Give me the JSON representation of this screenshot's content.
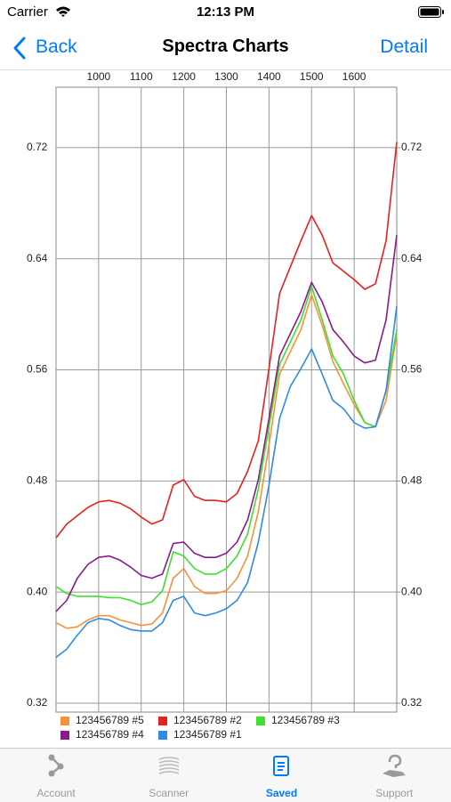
{
  "status_bar": {
    "carrier": "Carrier",
    "time": "12:13 PM"
  },
  "nav_bar": {
    "back": "Back",
    "title": "Spectra Charts",
    "action": "Detail"
  },
  "chart_data": {
    "type": "line",
    "x": [
      900,
      925,
      950,
      975,
      1000,
      1025,
      1050,
      1075,
      1100,
      1125,
      1150,
      1175,
      1200,
      1225,
      1250,
      1275,
      1300,
      1325,
      1350,
      1375,
      1400,
      1425,
      1450,
      1475,
      1500,
      1525,
      1550,
      1575,
      1600,
      1625,
      1650,
      1675,
      1700
    ],
    "series": [
      {
        "name": "123456789 #5",
        "color": "#f7923a",
        "values": [
          0.378,
          0.374,
          0.375,
          0.38,
          0.383,
          0.383,
          0.38,
          0.378,
          0.376,
          0.377,
          0.385,
          0.41,
          0.417,
          0.404,
          0.399,
          0.399,
          0.401,
          0.41,
          0.426,
          0.458,
          0.506,
          0.557,
          0.573,
          0.589,
          0.614,
          0.592,
          0.566,
          0.55,
          0.535,
          0.522,
          0.519,
          0.538,
          0.586
        ]
      },
      {
        "name": "123456789 #2",
        "color": "#e8201e",
        "values": [
          0.439,
          0.449,
          0.455,
          0.461,
          0.465,
          0.466,
          0.464,
          0.46,
          0.454,
          0.449,
          0.452,
          0.477,
          0.481,
          0.469,
          0.466,
          0.466,
          0.465,
          0.471,
          0.487,
          0.509,
          0.561,
          0.615,
          0.634,
          0.653,
          0.671,
          0.657,
          0.637,
          0.631,
          0.625,
          0.618,
          0.622,
          0.653,
          0.724
        ]
      },
      {
        "name": "123456789 #3",
        "color": "#3ce22c",
        "values": [
          0.404,
          0.399,
          0.397,
          0.397,
          0.397,
          0.396,
          0.396,
          0.394,
          0.391,
          0.393,
          0.401,
          0.429,
          0.426,
          0.417,
          0.413,
          0.413,
          0.417,
          0.426,
          0.442,
          0.474,
          0.519,
          0.564,
          0.58,
          0.596,
          0.62,
          0.596,
          0.57,
          0.557,
          0.538,
          0.522,
          0.519,
          0.545,
          0.589
        ]
      },
      {
        "name": "123456789 #4",
        "color": "#8a1a8c",
        "values": [
          0.386,
          0.394,
          0.41,
          0.42,
          0.425,
          0.426,
          0.423,
          0.418,
          0.412,
          0.41,
          0.413,
          0.435,
          0.436,
          0.428,
          0.425,
          0.425,
          0.428,
          0.436,
          0.452,
          0.481,
          0.525,
          0.57,
          0.586,
          0.602,
          0.623,
          0.609,
          0.589,
          0.58,
          0.57,
          0.565,
          0.567,
          0.596,
          0.657
        ]
      },
      {
        "name": "123456789 #1",
        "color": "#2f8ae6",
        "values": [
          0.353,
          0.359,
          0.369,
          0.378,
          0.381,
          0.38,
          0.376,
          0.373,
          0.372,
          0.372,
          0.378,
          0.394,
          0.397,
          0.385,
          0.383,
          0.385,
          0.388,
          0.394,
          0.407,
          0.436,
          0.477,
          0.525,
          0.548,
          0.561,
          0.575,
          0.557,
          0.538,
          0.532,
          0.522,
          0.518,
          0.519,
          0.545,
          0.606
        ]
      }
    ],
    "xlim": [
      900,
      1700
    ],
    "xticks": [
      1000,
      1100,
      1200,
      1300,
      1400,
      1500,
      1600
    ],
    "ylim": [
      0.3136,
      0.7635
    ],
    "yticks": [
      0.32,
      {
        "value": 0.4,
        "label": "0.40"
      },
      0.48,
      0.56,
      0.64,
      0.72
    ],
    "y2lim": [
      0.3136,
      0.7635
    ],
    "y2ticks": [
      0.32,
      {
        "value": 0.4,
        "label": "0.40"
      },
      0.48,
      0.56,
      0.64,
      0.72
    ],
    "grid": true,
    "legend": "bottom-left"
  },
  "tab_bar": {
    "items": [
      {
        "label": "Account"
      },
      {
        "label": "Scanner"
      },
      {
        "label": "Saved"
      },
      {
        "label": "Support"
      }
    ],
    "selected": 2
  }
}
